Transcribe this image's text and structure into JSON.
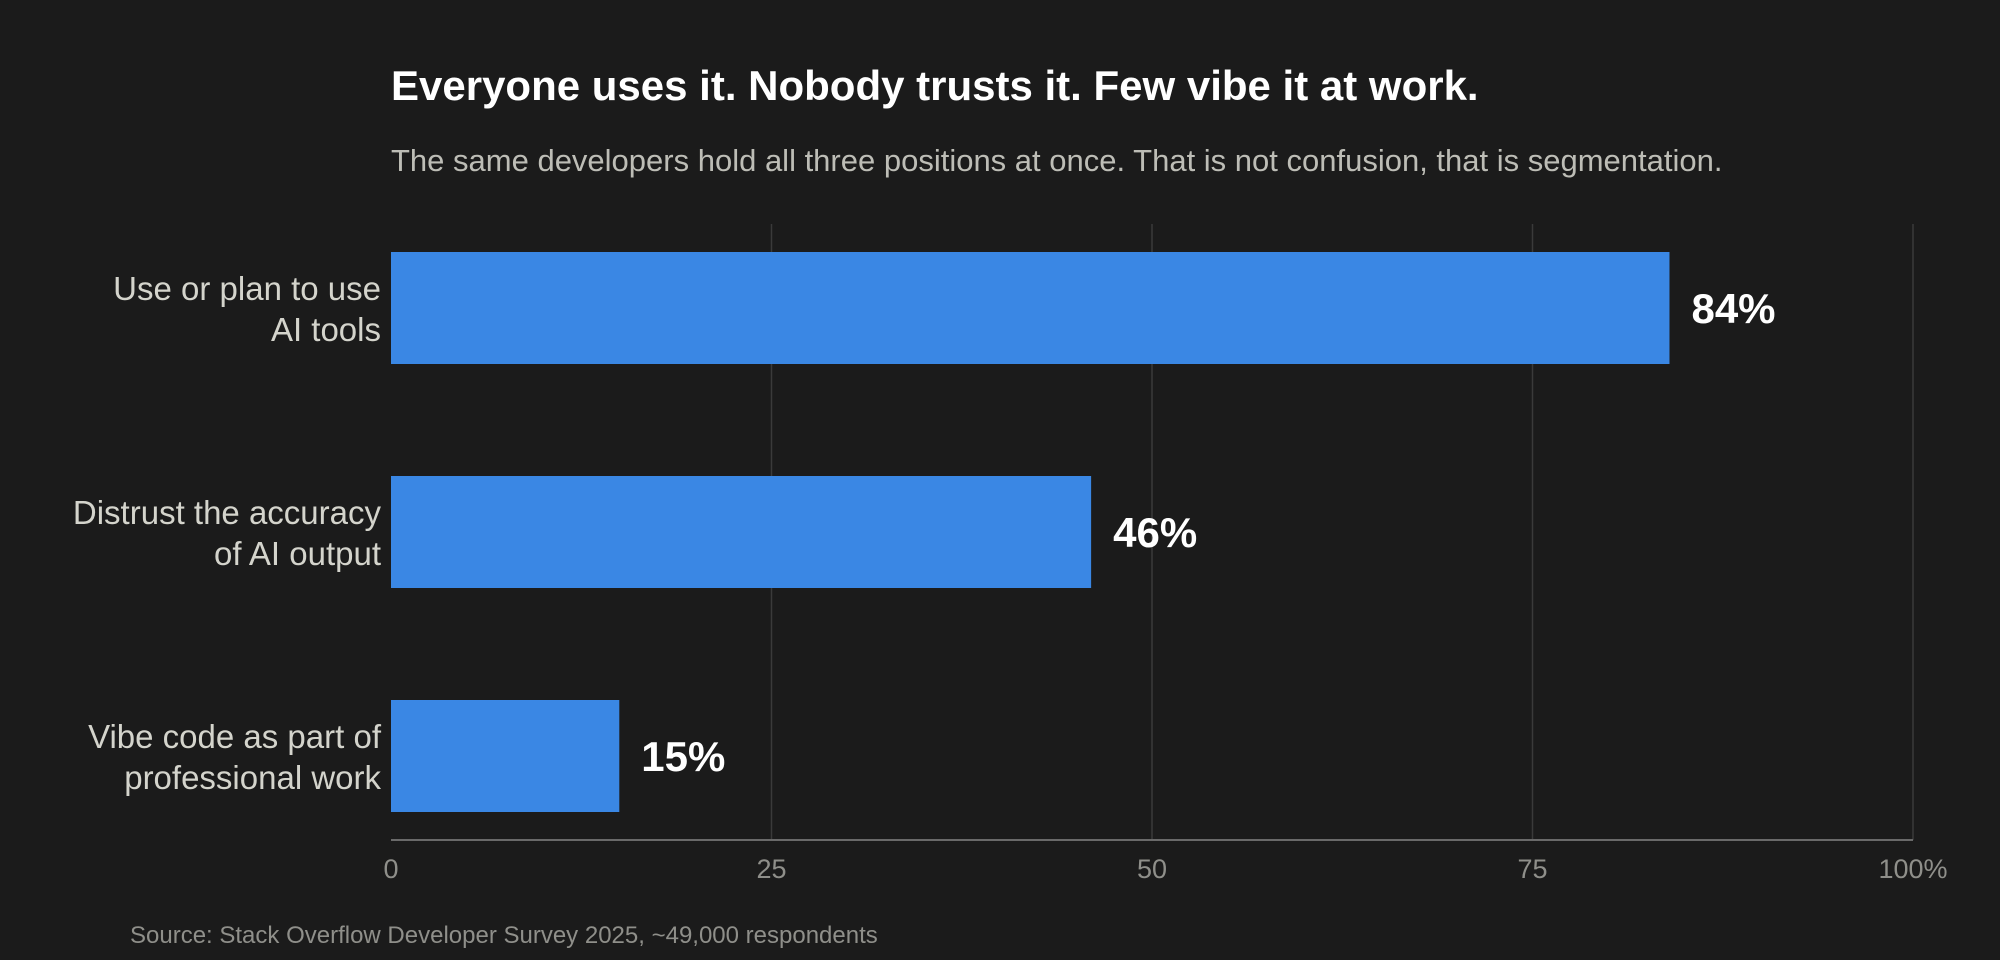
{
  "title": "Everyone uses it. Nobody trusts it. Few vibe it at work.",
  "subtitle": "The same developers hold all three positions at once. That is not confusion, that is segmentation.",
  "source": "Source: Stack Overflow Developer Survey 2025, ~49,000 respondents",
  "colors": {
    "background": "#1b1b1b",
    "bar": "#3a87e4",
    "grid": "#3a3a3a",
    "axis": "#6a6a6a",
    "category_label": "#d4d4cc",
    "tick_label": "#8f8f8a",
    "value_label": "#ffffff"
  },
  "chart_data": {
    "type": "bar",
    "orientation": "horizontal",
    "categories": [
      [
        "Use or plan to use",
        "AI tools"
      ],
      [
        "Distrust the accuracy",
        "of AI output"
      ],
      [
        "Vibe code as part of",
        "professional work"
      ]
    ],
    "values": [
      84,
      46,
      15
    ],
    "value_labels": [
      "84%",
      "46%",
      "15%"
    ],
    "xlim": [
      0,
      100
    ],
    "xticks": [
      0,
      25,
      50,
      75,
      100
    ],
    "xtick_labels": [
      "0",
      "25",
      "50",
      "75",
      "100%"
    ],
    "grid": true
  }
}
